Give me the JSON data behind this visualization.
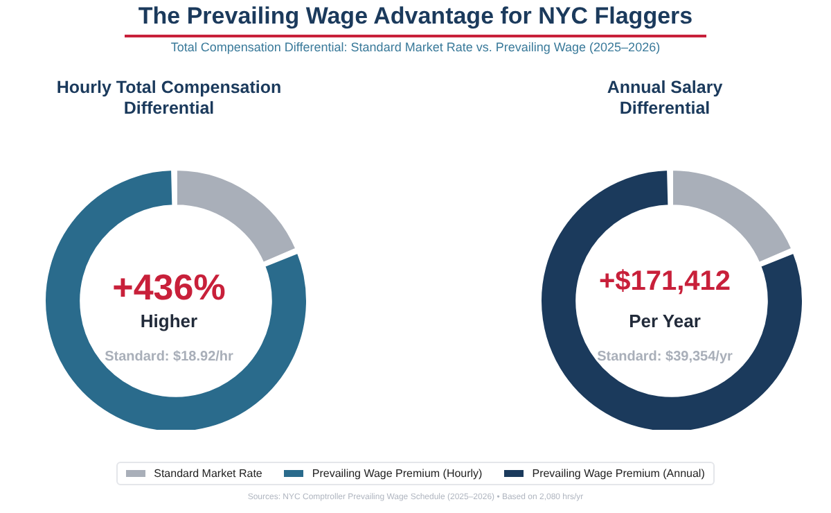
{
  "chart_data": [
    {
      "type": "donut",
      "title": "Hourly Total Compensation Differential",
      "categories": [
        "Standard Market Rate",
        "Prevailing Wage Premium (Hourly)"
      ],
      "values": [
        18.7,
        81.3
      ],
      "colors": [
        "#a9afb9",
        "#2a6b8c"
      ],
      "legend": "bottom",
      "annotations": [
        "The Prevailing Wage Advantage for NYC Flaggers",
        "Total Compensation Differential: Standard Market Rate vs. Prevailing Wage (2025–2026)",
        "+436%",
        "Higher",
        "Standard: $18.92/hr"
      ]
    },
    {
      "type": "donut",
      "title": "Annual Salary Differential",
      "categories": [
        null,
        "Prevailing Wage Premium (Annual)"
      ],
      "values": [
        18.7,
        81.3
      ],
      "colors": [
        "#a9afb9",
        "#1b3a5c"
      ],
      "legend": "bottom",
      "annotations": [
        "+$171,412",
        "Per Year",
        "Standard: $39,354/yr",
        "Sources: NYC Comptroller Prevailing Wage Schedule (2025–2026)  •  Based on 2,080 hrs/yr"
      ]
    }
  ]
}
